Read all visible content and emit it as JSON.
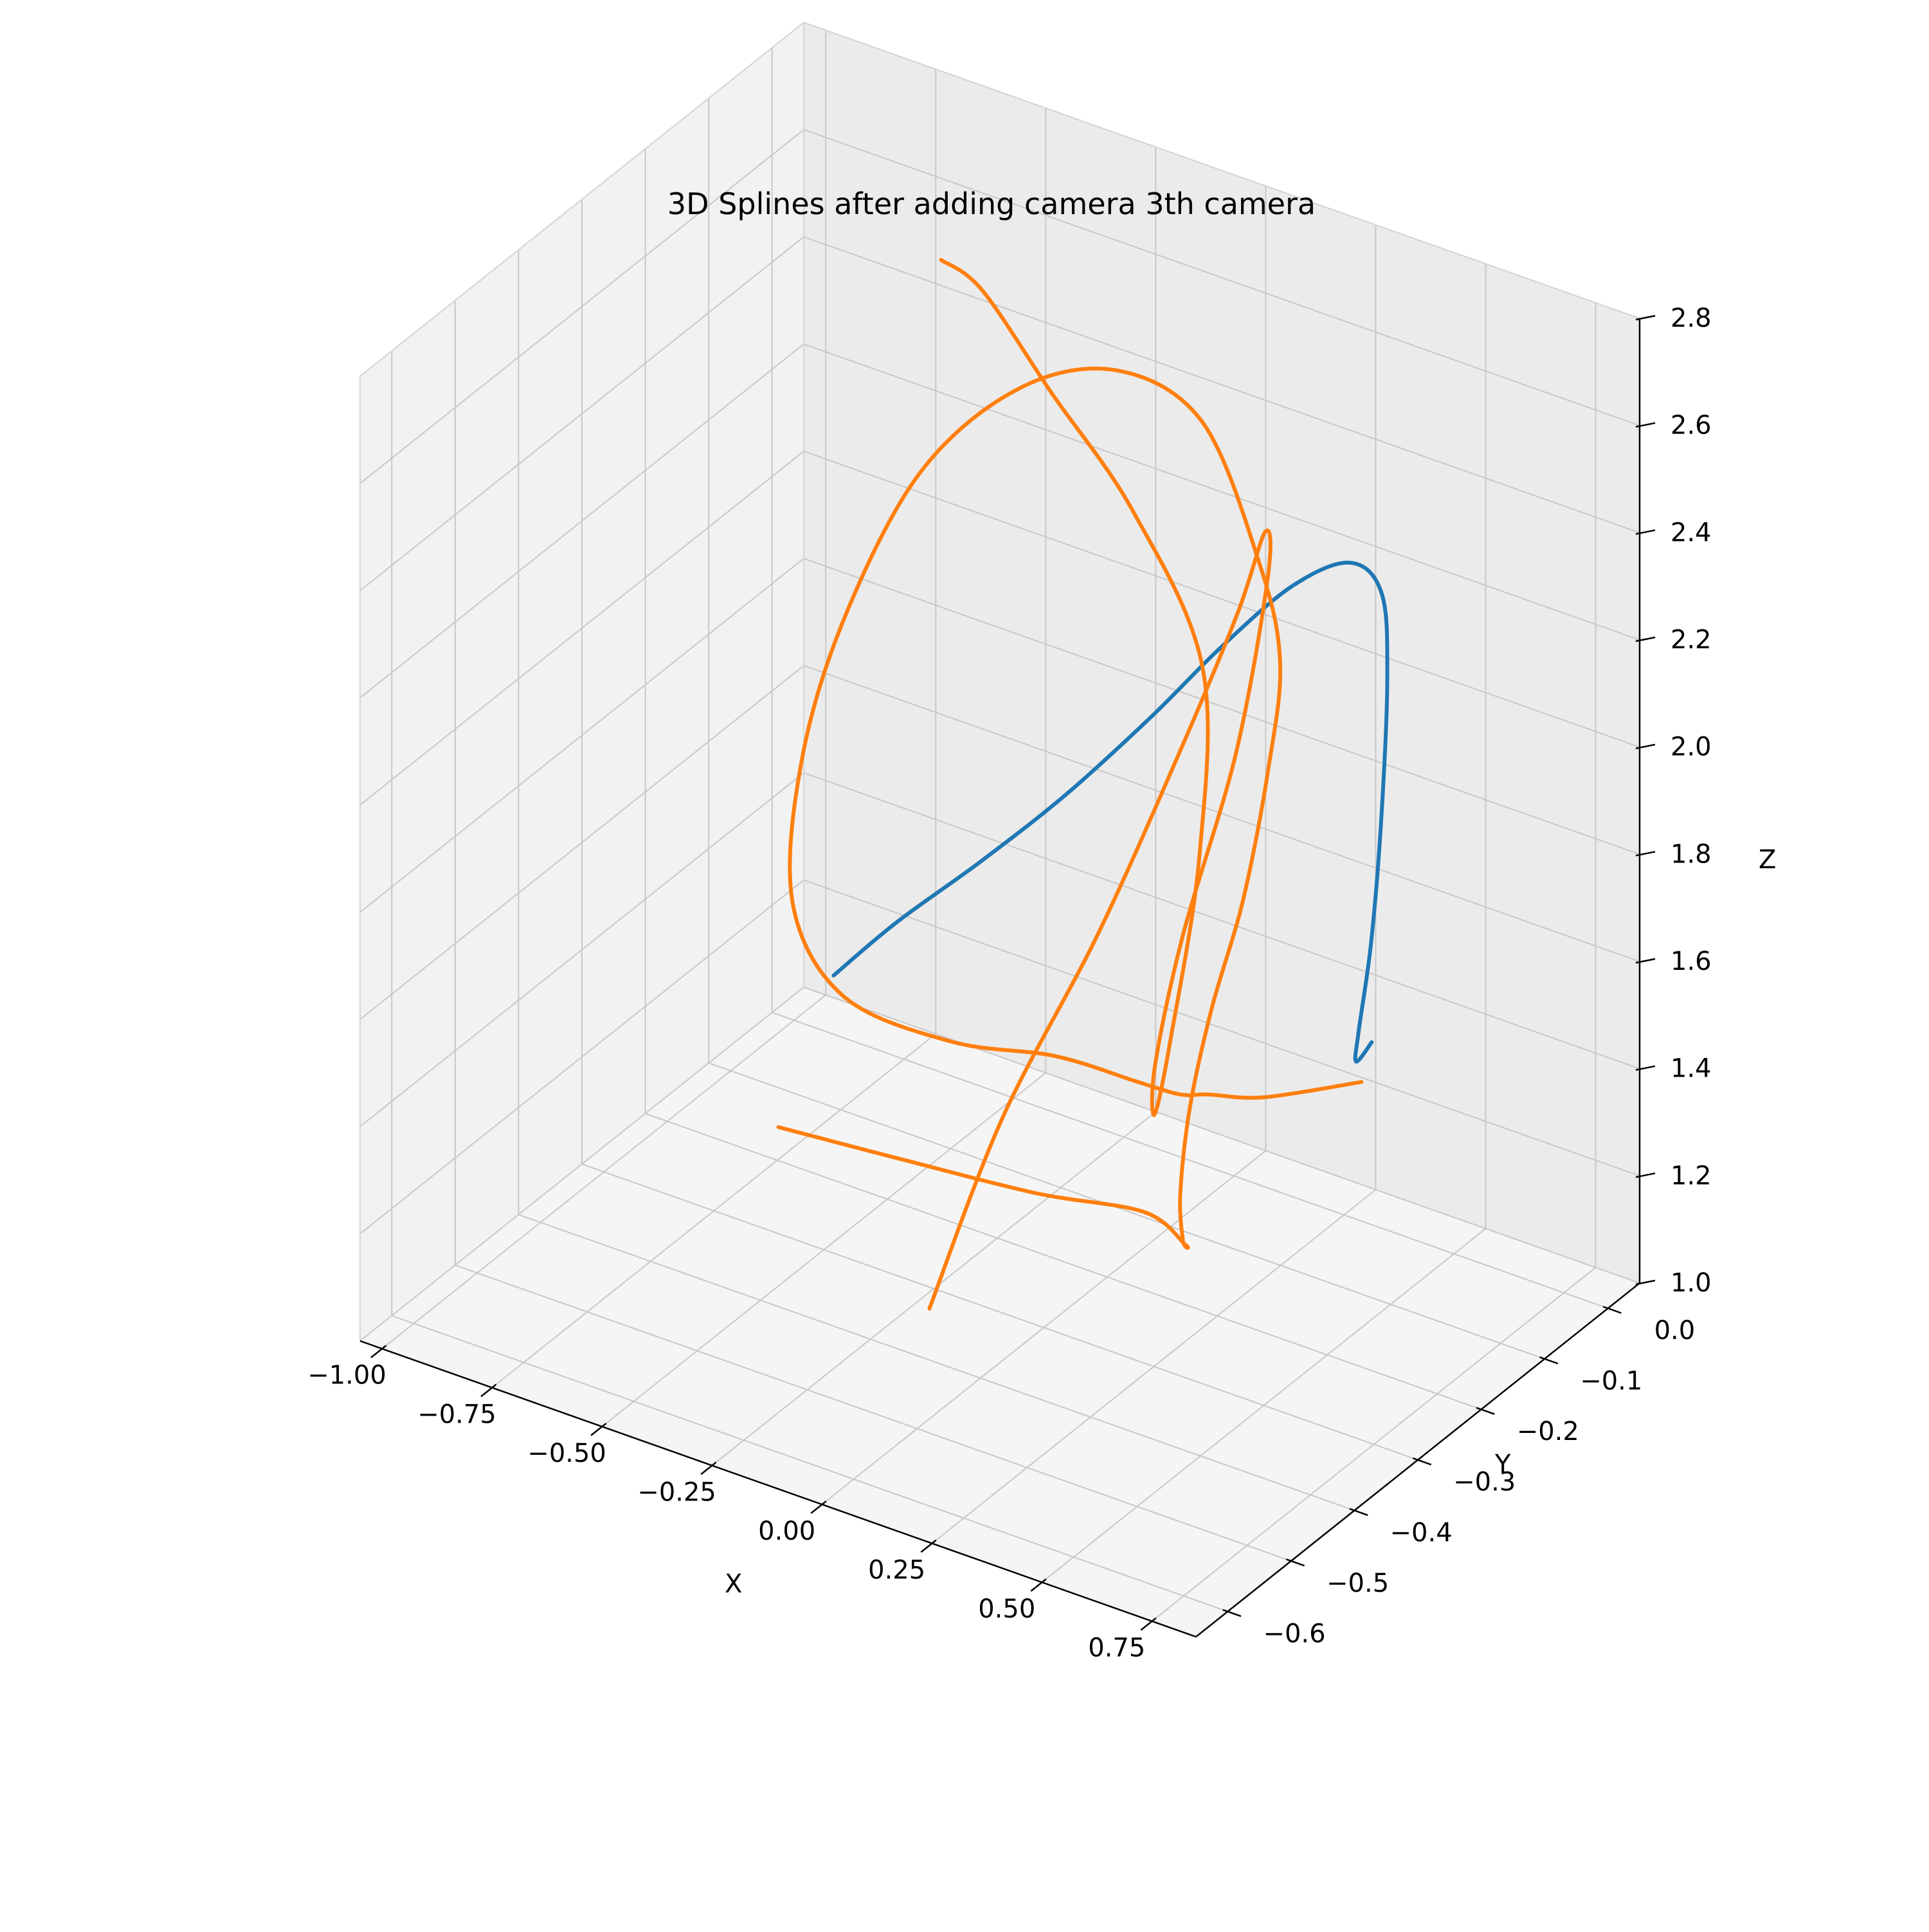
{
  "chart_data": {
    "type": "line3d",
    "title": "3D Splines after adding camera 3th camera",
    "xlabel": "X",
    "ylabel": "Y",
    "zlabel": "Z",
    "x_ticks": [
      "−1.00",
      "−0.75",
      "−0.50",
      "−0.25",
      "0.00",
      "0.25",
      "0.50",
      "0.75"
    ],
    "x_tick_values": [
      -1.0,
      -0.75,
      -0.5,
      -0.25,
      0.0,
      0.25,
      0.5,
      0.75
    ],
    "y_ticks": [
      "0.0",
      "−0.1",
      "−0.2",
      "−0.3",
      "−0.4",
      "−0.5",
      "−0.6"
    ],
    "y_tick_values": [
      0.0,
      -0.1,
      -0.2,
      -0.3,
      -0.4,
      -0.5,
      -0.6
    ],
    "z_ticks": [
      "1.0",
      "1.2",
      "1.4",
      "1.6",
      "1.8",
      "2.0",
      "2.2",
      "2.4",
      "2.6",
      "2.8"
    ],
    "z_tick_values": [
      1.0,
      1.2,
      1.4,
      1.6,
      1.8,
      2.0,
      2.2,
      2.4,
      2.6,
      2.8
    ],
    "grid": true,
    "series": [
      {
        "color": "#1f77b4",
        "points": [
          [
            -0.55,
            -0.25,
            1.45
          ],
          [
            -0.45,
            -0.22,
            1.55
          ],
          [
            -0.3,
            -0.19,
            1.68
          ],
          [
            -0.15,
            -0.16,
            1.82
          ],
          [
            0.0,
            -0.13,
            1.98
          ],
          [
            0.12,
            -0.1,
            2.12
          ],
          [
            0.25,
            -0.08,
            2.25
          ],
          [
            0.38,
            -0.08,
            2.33
          ],
          [
            0.48,
            -0.1,
            2.32
          ],
          [
            0.55,
            -0.14,
            2.22
          ],
          [
            0.58,
            -0.17,
            2.0
          ],
          [
            0.6,
            -0.2,
            1.8
          ],
          [
            0.6,
            -0.22,
            1.65
          ],
          [
            0.58,
            -0.21,
            1.58
          ],
          [
            0.63,
            -0.22,
            1.64
          ]
        ]
      },
      {
        "color": "#ff7f0e",
        "points": [
          [
            0.65,
            -0.25,
            1.6
          ],
          [
            0.4,
            -0.23,
            1.48
          ],
          [
            0.2,
            -0.18,
            1.38
          ],
          [
            0.05,
            -0.12,
            1.28
          ],
          [
            -0.15,
            -0.05,
            1.18
          ],
          [
            -0.35,
            -0.04,
            1.16
          ],
          [
            -0.5,
            -0.1,
            1.2
          ],
          [
            -0.6,
            -0.2,
            1.35
          ],
          [
            -0.6,
            -0.28,
            1.6
          ],
          [
            -0.55,
            -0.3,
            1.9
          ],
          [
            -0.45,
            -0.3,
            2.2
          ],
          [
            -0.35,
            -0.25,
            2.45
          ],
          [
            -0.2,
            -0.2,
            2.6
          ],
          [
            -0.05,
            -0.15,
            2.63
          ],
          [
            0.1,
            -0.12,
            2.55
          ],
          [
            0.2,
            -0.1,
            2.3
          ],
          [
            0.22,
            -0.08,
            2.1
          ],
          [
            0.15,
            -0.05,
            1.85
          ],
          [
            0.05,
            -0.02,
            1.55
          ],
          [
            -0.05,
            0.0,
            1.3
          ],
          [
            -0.1,
            0.0,
            1.1
          ],
          [
            -0.05,
            -0.05,
            1.0
          ],
          [
            0.1,
            -0.15,
            1.05
          ],
          [
            0.25,
            -0.25,
            1.18
          ],
          [
            0.3,
            -0.35,
            1.35
          ],
          [
            0.2,
            -0.45,
            1.45
          ],
          [
            0.0,
            -0.52,
            1.52
          ],
          [
            -0.2,
            -0.58,
            1.58
          ]
        ]
      },
      {
        "color": "#ff7f0e",
        "points": [
          [
            0.1,
            -0.55,
            1.3
          ],
          [
            0.05,
            -0.4,
            1.5
          ],
          [
            0.05,
            -0.25,
            1.7
          ],
          [
            0.05,
            -0.12,
            1.92
          ],
          [
            0.08,
            -0.05,
            2.12
          ],
          [
            0.1,
            -0.02,
            2.25
          ],
          [
            0.12,
            -0.03,
            2.18
          ],
          [
            0.12,
            -0.08,
            1.9
          ],
          [
            0.1,
            -0.15,
            1.62
          ],
          [
            0.08,
            -0.18,
            1.4
          ],
          [
            0.05,
            -0.16,
            1.28
          ],
          [
            0.0,
            -0.1,
            1.35
          ],
          [
            -0.05,
            -0.02,
            1.6
          ],
          [
            -0.1,
            0.02,
            1.9
          ],
          [
            -0.2,
            -0.02,
            2.2
          ],
          [
            -0.3,
            -0.08,
            2.45
          ],
          [
            -0.4,
            -0.12,
            2.65
          ],
          [
            -0.45,
            -0.15,
            2.72
          ]
        ]
      }
    ]
  }
}
